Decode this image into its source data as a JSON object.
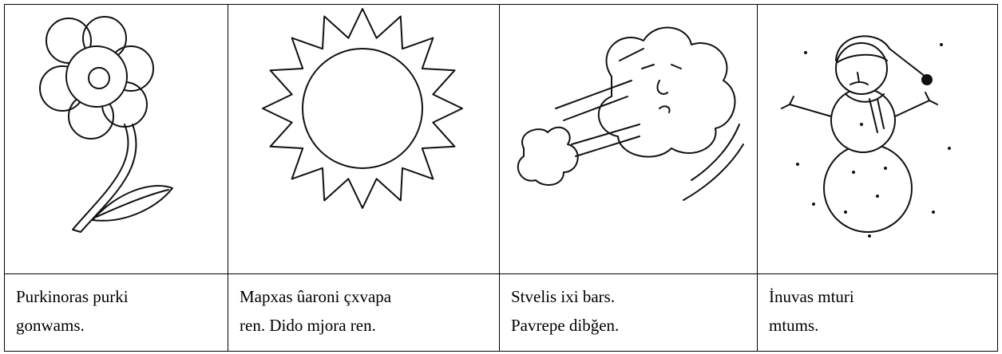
{
  "table": {
    "captions": [
      [
        "Purkinoras purki",
        "gonwams."
      ],
      [
        "Mapxas ûaroni çxvapa",
        "ren. Dido mjora ren."
      ],
      [
        "Stvelis ixi bars.",
        "Pavrepe dibğen."
      ],
      [
        "İnuvas mturi",
        "mtums."
      ]
    ]
  }
}
